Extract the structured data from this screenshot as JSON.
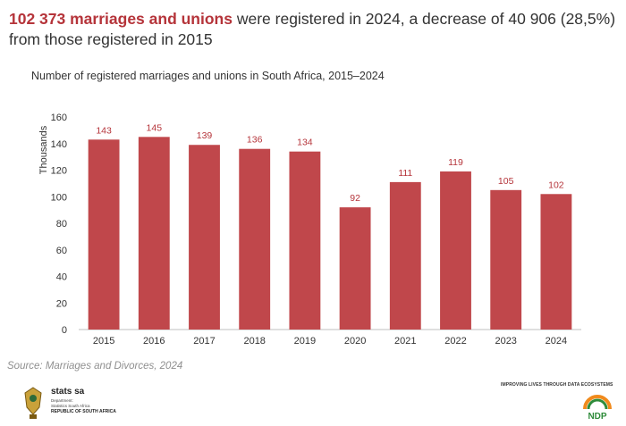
{
  "headline": {
    "highlight": "102 373 marriages and unions",
    "rest": " were registered in 2024, a decrease of 40 906 (28,5%) from those registered in 2015"
  },
  "footer": {
    "source": "Source: Marriages and Divorces, 2024",
    "tagline": "IMPROVING LIVES THROUGH DATA ECOSYSTEMS",
    "org_name": "stats sa",
    "org_sub_1": "Department:",
    "org_sub_2": "Statistics South Africa",
    "org_country": "REPUBLIC OF SOUTH AFRICA",
    "ndp_logo_text": "NDP"
  },
  "colors": {
    "bar": "#c0474b",
    "label": "#b5343a",
    "highlight": "#b5343a",
    "ndp_green": "#2e8b3a",
    "ndp_orange": "#f08a1c"
  },
  "chart_data": {
    "type": "bar",
    "title": "Number of registered marriages and unions in South Africa, 2015–2024",
    "xlabel": "",
    "ylabel": "Thousands",
    "categories": [
      "2015",
      "2016",
      "2017",
      "2018",
      "2019",
      "2020",
      "2021",
      "2022",
      "2023",
      "2024"
    ],
    "values": [
      143,
      145,
      139,
      136,
      134,
      92,
      111,
      119,
      105,
      102
    ],
    "ylim": [
      0,
      160
    ],
    "yticks": [
      0,
      20,
      40,
      60,
      80,
      100,
      120,
      140,
      160
    ],
    "grid": false,
    "legend": "none"
  }
}
